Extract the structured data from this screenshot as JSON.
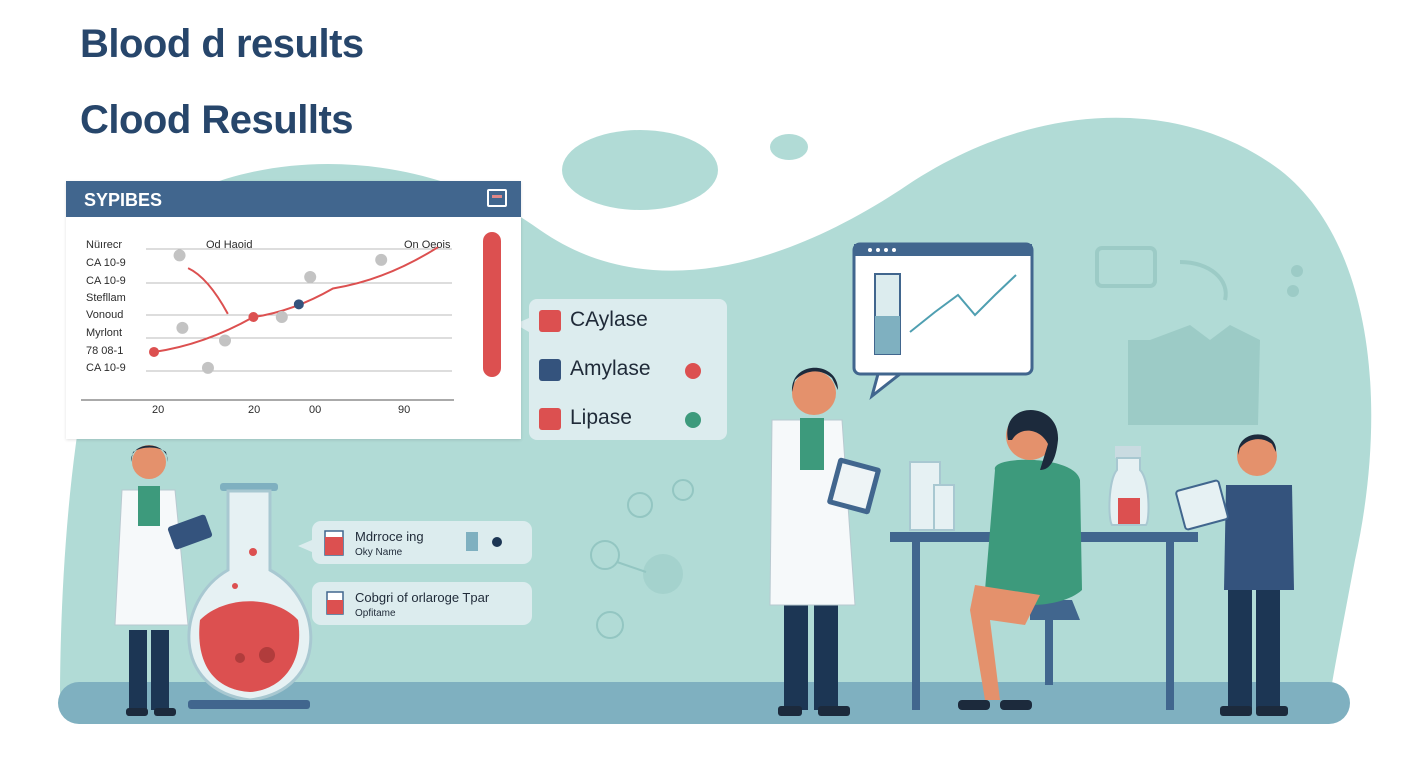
{
  "titles": {
    "primary": "Blood d results",
    "secondary": "Clood Resullts"
  },
  "results_panel": {
    "header_title": "SYPIBES",
    "header_icon": "report-icon",
    "row_labels": [
      "Nüırecr",
      "CA 10-9",
      "CA 10-9",
      "Stefllam",
      "Vonoud",
      "Myrlont",
      "78 08-1",
      "CA 10-9"
    ],
    "column_labels": [
      "Od Haoid",
      "On Oeois"
    ],
    "x_tick_labels": [
      "20",
      "20",
      "00",
      "90"
    ],
    "chart_data": {
      "type": "line",
      "series": [
        {
          "values": [
            [
              0,
              0.3
            ],
            [
              35,
              0.85
            ],
            [
              63,
              1.3
            ],
            [
              100,
              1.95
            ]
          ]
        },
        {
          "values": [
            [
              12,
              1.62
            ],
            [
              26,
              0.9
            ]
          ]
        }
      ],
      "scatter_points": [
        [
          9,
          1.82
        ],
        [
          10,
          0.68
        ],
        [
          19,
          0.05
        ],
        [
          25,
          0.48
        ],
        [
          45,
          0.85
        ],
        [
          55,
          1.48
        ],
        [
          80,
          1.75
        ]
      ],
      "ylim": [
        0,
        2
      ],
      "xlim": [
        0,
        100
      ]
    }
  },
  "legend": {
    "items": [
      {
        "label": "CAylase",
        "swatch": "#dc5050",
        "dot": null
      },
      {
        "label": "Amylase",
        "swatch": "#34537d",
        "dot": "#dc5050"
      },
      {
        "label": "Lipase",
        "swatch": "#dc5050",
        "dot": "#3d9a7c"
      }
    ]
  },
  "info_cards": [
    {
      "line1": "Mdrroce ing",
      "line2": "Oky Name"
    },
    {
      "line1": "Cobgri of orlaroge Tpar",
      "line2": "Opfitame"
    }
  ],
  "colors": {
    "title": "#27466b",
    "panel_header": "#41668e",
    "background_blob": "#b1dbd6",
    "floor": "#7fb0c0",
    "accent_red": "#dc5050"
  }
}
